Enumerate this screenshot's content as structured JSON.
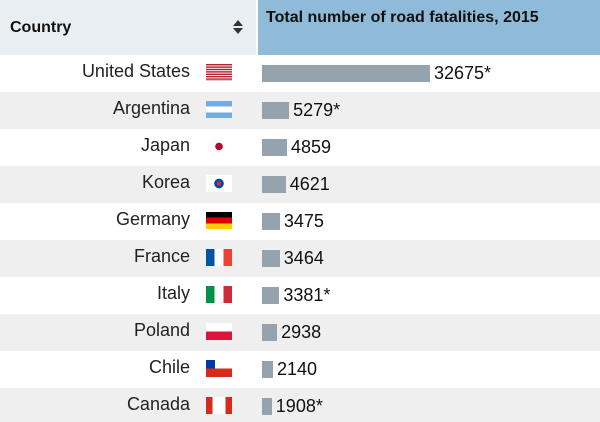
{
  "chart_data": {
    "type": "bar",
    "orientation": "horizontal",
    "category_header": "Country",
    "title": "Total number of road fatalities, 2015",
    "categories": [
      "United States",
      "Argentina",
      "Japan",
      "Korea",
      "Germany",
      "France",
      "Italy",
      "Poland",
      "Chile",
      "Canada"
    ],
    "values": [
      32675,
      5279,
      4859,
      4621,
      3475,
      3464,
      3381,
      2938,
      2140,
      1908
    ],
    "value_labels": [
      "32675*",
      "5279*",
      "4859",
      "4621",
      "3475",
      "3464",
      "3381*",
      "2938",
      "2140",
      "1908*"
    ],
    "color": "#94a3ae"
  }
}
